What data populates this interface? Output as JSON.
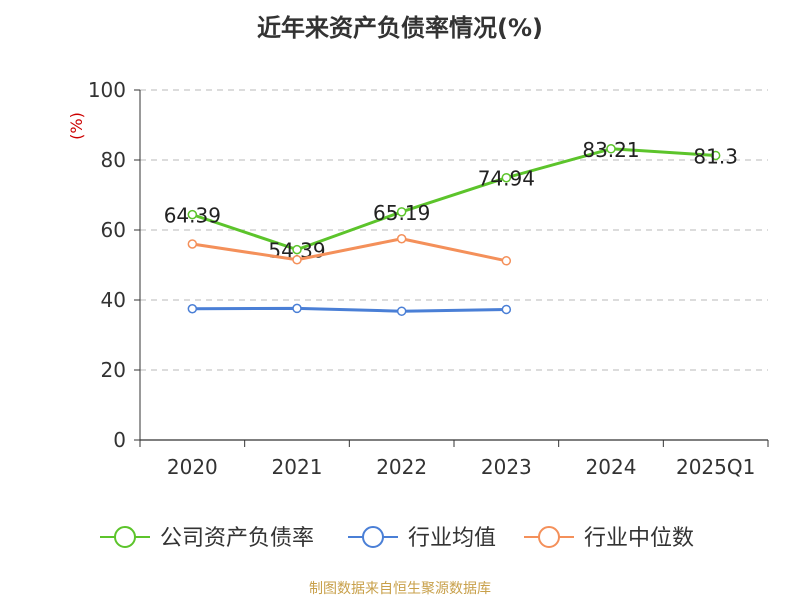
{
  "chart_data": {
    "type": "line",
    "title": "近年来资产负债率情况(%)",
    "ylabel": "(%)",
    "xlabel": "",
    "categories": [
      "2020",
      "2021",
      "2022",
      "2023",
      "2024",
      "2025Q1"
    ],
    "ylim": [
      0,
      100
    ],
    "yticks": [
      0,
      20,
      40,
      60,
      80,
      100
    ],
    "grid": true,
    "legend_position": "bottom",
    "series": [
      {
        "name": "公司资产负债率",
        "color": "#5cc42b",
        "values": [
          64.39,
          54.39,
          65.19,
          74.94,
          83.21,
          81.3
        ],
        "labels": [
          "64.39",
          "54.39",
          "65.19",
          "74.94",
          "83.21",
          "81.3"
        ]
      },
      {
        "name": "行业均值",
        "color": "#4a7fd6",
        "values": [
          37.5,
          37.6,
          36.8,
          37.3,
          null,
          null
        ],
        "labels": null
      },
      {
        "name": "行业中位数",
        "color": "#f4905a",
        "values": [
          56.0,
          51.5,
          57.5,
          51.2,
          null,
          null
        ],
        "labels": null
      }
    ]
  },
  "source": "制图数据来自恒生聚源数据库"
}
